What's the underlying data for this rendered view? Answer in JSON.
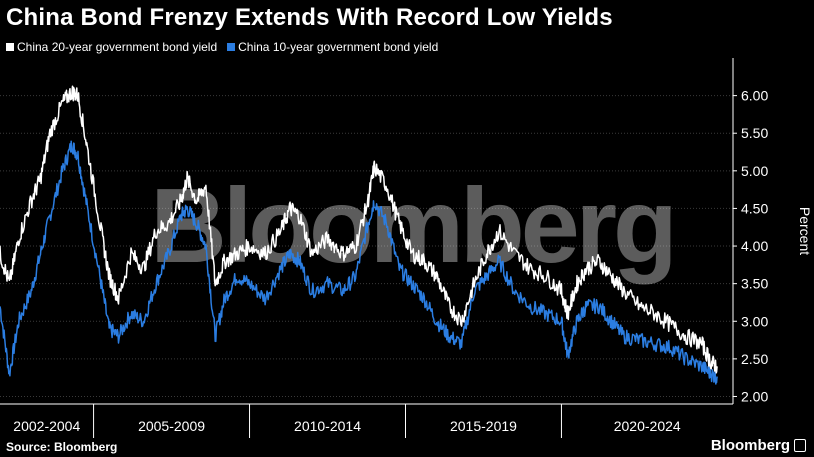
{
  "header": {
    "title": "China Bond Frenzy Extends With Record Low Yields"
  },
  "footer": {
    "source": "Source: Bloomberg",
    "brand": "Bloomberg"
  },
  "watermark": "Bloomberg",
  "colors": {
    "series_20y": "#ffffff",
    "series_10y": "#2b7de1",
    "background": "#000000",
    "grid": "#3a3a3a"
  },
  "chart_data": {
    "type": "line",
    "title": "China Bond Frenzy Extends With Record Low Yields",
    "ylabel": "Percent",
    "xlabel": "",
    "ylim": [
      1.9,
      6.5
    ],
    "y_ticks": [
      "2.00",
      "2.50",
      "3.00",
      "3.50",
      "4.00",
      "4.50",
      "5.00",
      "5.50",
      "6.00"
    ],
    "x_range": [
      2002.0,
      2025.5
    ],
    "x_period_labels": [
      {
        "label": "2002-2004",
        "start": 2002.0,
        "end": 2005.0
      },
      {
        "label": "2005-2009",
        "start": 2005.0,
        "end": 2010.0
      },
      {
        "label": "2010-2014",
        "start": 2010.0,
        "end": 2015.0
      },
      {
        "label": "2015-2019",
        "start": 2015.0,
        "end": 2020.0
      },
      {
        "label": "2020-2024",
        "start": 2020.0,
        "end": 2025.5
      }
    ],
    "legend_position": "top-left",
    "series": [
      {
        "name": "China 20-year government bond yield",
        "x": [
          2002.0,
          2002.3,
          2002.6,
          2003.0,
          2003.3,
          2003.6,
          2004.0,
          2004.3,
          2004.5,
          2004.8,
          2005.2,
          2005.5,
          2005.8,
          2006.2,
          2006.6,
          2007.0,
          2007.4,
          2007.8,
          2008.0,
          2008.3,
          2008.6,
          2008.9,
          2009.2,
          2009.6,
          2010.0,
          2010.5,
          2011.0,
          2011.3,
          2011.6,
          2012.0,
          2012.5,
          2013.0,
          2013.4,
          2013.8,
          2014.0,
          2014.4,
          2014.8,
          2015.2,
          2015.6,
          2016.0,
          2016.4,
          2016.8,
          2017.2,
          2017.6,
          2018.0,
          2018.5,
          2019.0,
          2019.5,
          2020.0,
          2020.2,
          2020.5,
          2020.8,
          2021.2,
          2021.6,
          2022.0,
          2022.5,
          2023.0,
          2023.5,
          2024.0,
          2024.5,
          2024.8,
          2025.0
        ],
        "values": [
          3.9,
          3.5,
          4.1,
          4.6,
          4.9,
          5.5,
          5.9,
          6.05,
          6.0,
          5.3,
          4.3,
          3.6,
          3.3,
          3.9,
          3.7,
          4.2,
          4.3,
          4.6,
          4.9,
          4.6,
          4.8,
          3.5,
          3.8,
          3.9,
          4.0,
          3.9,
          4.2,
          4.5,
          4.4,
          3.9,
          4.1,
          3.9,
          4.0,
          4.6,
          5.05,
          4.8,
          4.3,
          3.9,
          3.8,
          3.6,
          3.2,
          3.0,
          3.5,
          3.9,
          4.2,
          3.9,
          3.7,
          3.6,
          3.4,
          3.1,
          3.5,
          3.7,
          3.8,
          3.6,
          3.4,
          3.2,
          3.1,
          2.95,
          2.8,
          2.7,
          2.45,
          2.4
        ]
      },
      {
        "name": "China 10-year government bond yield",
        "x": [
          2002.0,
          2002.3,
          2002.6,
          2003.0,
          2003.3,
          2003.6,
          2004.0,
          2004.3,
          2004.5,
          2004.8,
          2005.2,
          2005.5,
          2005.8,
          2006.2,
          2006.6,
          2007.0,
          2007.4,
          2007.8,
          2008.0,
          2008.3,
          2008.6,
          2008.9,
          2009.2,
          2009.6,
          2010.0,
          2010.5,
          2011.0,
          2011.3,
          2011.6,
          2012.0,
          2012.5,
          2013.0,
          2013.4,
          2013.8,
          2014.0,
          2014.4,
          2014.8,
          2015.2,
          2015.6,
          2016.0,
          2016.4,
          2016.8,
          2017.2,
          2017.6,
          2018.0,
          2018.5,
          2019.0,
          2019.5,
          2020.0,
          2020.2,
          2020.5,
          2020.8,
          2021.2,
          2021.6,
          2022.0,
          2022.5,
          2023.0,
          2023.5,
          2024.0,
          2024.5,
          2024.8,
          2025.0
        ],
        "values": [
          3.2,
          2.3,
          3.0,
          3.4,
          3.9,
          4.4,
          5.0,
          5.35,
          5.2,
          4.5,
          3.6,
          2.9,
          2.8,
          3.1,
          3.0,
          3.5,
          3.9,
          4.4,
          4.5,
          4.3,
          4.0,
          2.8,
          3.3,
          3.6,
          3.5,
          3.3,
          3.7,
          3.9,
          3.8,
          3.4,
          3.5,
          3.4,
          3.6,
          4.3,
          4.6,
          4.3,
          3.7,
          3.5,
          3.3,
          3.0,
          2.8,
          2.7,
          3.4,
          3.6,
          3.8,
          3.4,
          3.2,
          3.1,
          3.0,
          2.55,
          3.0,
          3.2,
          3.2,
          3.0,
          2.8,
          2.75,
          2.7,
          2.65,
          2.5,
          2.4,
          2.3,
          2.25
        ]
      }
    ]
  }
}
